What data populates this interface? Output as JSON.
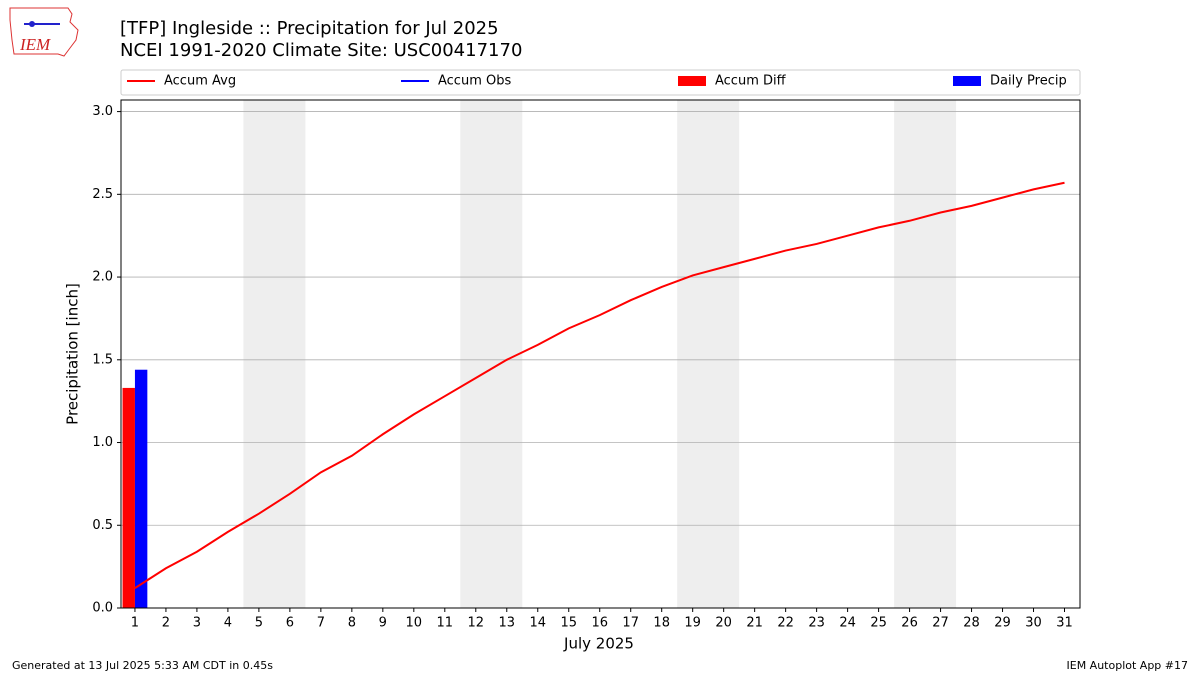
{
  "logo_text": "IEM",
  "footer_left": "Generated at 13 Jul 2025 5:33 AM CDT in 0.45s",
  "footer_right": "IEM Autoplot App #17",
  "chart_data": {
    "type": "bar_line",
    "title": "[TFP] Ingleside :: Precipitation for Jul 2025",
    "subtitle": "NCEI 1991-2020 Climate Site: USC00417170",
    "xlabel": "July 2025",
    "ylabel": "Precipitation [inch]",
    "x": [
      1,
      2,
      3,
      4,
      5,
      6,
      7,
      8,
      9,
      10,
      11,
      12,
      13,
      14,
      15,
      16,
      17,
      18,
      19,
      20,
      21,
      22,
      23,
      24,
      25,
      26,
      27,
      28,
      29,
      30,
      31
    ],
    "xlim": [
      0.55,
      31.5
    ],
    "xticks": [
      1,
      2,
      3,
      4,
      5,
      6,
      7,
      8,
      9,
      10,
      11,
      12,
      13,
      14,
      15,
      16,
      17,
      18,
      19,
      20,
      21,
      22,
      23,
      24,
      25,
      26,
      27,
      28,
      29,
      30,
      31
    ],
    "ylim": [
      0,
      3.07
    ],
    "yticks": [
      {
        "value": 0,
        "label": "0.0"
      },
      {
        "value": 0.5,
        "label": "0.5"
      },
      {
        "value": 1,
        "label": "1.0"
      },
      {
        "value": 1.5,
        "label": "1.5"
      },
      {
        "value": 2,
        "label": "2.0"
      },
      {
        "value": 2.5,
        "label": "2.5"
      },
      {
        "value": 3,
        "label": "3.0"
      }
    ],
    "grid": true,
    "shaded_spans": [
      [
        4.5,
        6.5
      ],
      [
        11.5,
        13.5
      ],
      [
        18.5,
        20.5
      ],
      [
        25.5,
        27.5
      ]
    ],
    "shade_color": "#eeeeee",
    "series": [
      {
        "name": "Accum Avg",
        "kind": "line",
        "color": "#ff0000",
        "values": [
          0.12,
          0.24,
          0.34,
          0.46,
          0.57,
          0.69,
          0.82,
          0.92,
          1.05,
          1.17,
          1.28,
          1.39,
          1.5,
          1.59,
          1.69,
          1.77,
          1.86,
          1.94,
          2.01,
          2.06,
          2.11,
          2.16,
          2.2,
          2.25,
          2.3,
          2.34,
          2.39,
          2.43,
          2.48,
          2.53,
          2.57
        ]
      },
      {
        "name": "Accum Obs",
        "kind": "line",
        "color": "#0000ff",
        "values": [
          1.44,
          null,
          null,
          null,
          null,
          null,
          null,
          null,
          null,
          null,
          null,
          null,
          null,
          null,
          null,
          null,
          null,
          null,
          null,
          null,
          null,
          null,
          null,
          null,
          null,
          null,
          null,
          null,
          null,
          null,
          null
        ]
      },
      {
        "name": "Accum Diff",
        "kind": "bar",
        "color": "#ff0000",
        "values": [
          1.33,
          null,
          null,
          null,
          null,
          null,
          null,
          null,
          null,
          null,
          null,
          null,
          null,
          null,
          null,
          null,
          null,
          null,
          null,
          null,
          null,
          null,
          null,
          null,
          null,
          null,
          null,
          null,
          null,
          null,
          null
        ]
      },
      {
        "name": "Daily Precip",
        "kind": "bar",
        "color": "#0000ff",
        "values": [
          1.44,
          null,
          null,
          null,
          null,
          null,
          null,
          null,
          null,
          null,
          null,
          null,
          null,
          null,
          null,
          null,
          null,
          null,
          null,
          null,
          null,
          null,
          null,
          null,
          null,
          null,
          null,
          null,
          null,
          null,
          null
        ]
      }
    ]
  }
}
